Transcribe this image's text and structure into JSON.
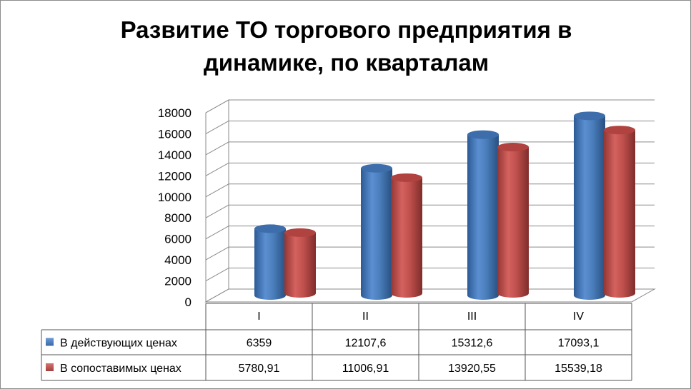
{
  "chart_data": {
    "type": "bar",
    "title_lines": [
      "Развитие ТО торгового предприятия в",
      "динамике, по кварталам"
    ],
    "categories": [
      "I",
      "II",
      "III",
      "IV"
    ],
    "series": [
      {
        "name": "В действующих ценах",
        "values": [
          6359,
          12107.6,
          15312.6,
          17093.1
        ],
        "labels": [
          "6359",
          "12107,6",
          "15312,6",
          "17093,1"
        ],
        "color": "#4a7ebb"
      },
      {
        "name": "В сопоставимых ценах",
        "values": [
          5780.91,
          11006.91,
          13920.55,
          15539.18
        ],
        "labels": [
          "5780,91",
          "11006,91",
          "13920,55",
          "15539,18"
        ],
        "color": "#c0504d"
      }
    ],
    "ylim": [
      0,
      18000
    ],
    "yticks": [
      "0",
      "2000",
      "4000",
      "6000",
      "8000",
      "10000",
      "12000",
      "14000",
      "16000",
      "18000"
    ],
    "grid": true,
    "legend": "data-table"
  }
}
